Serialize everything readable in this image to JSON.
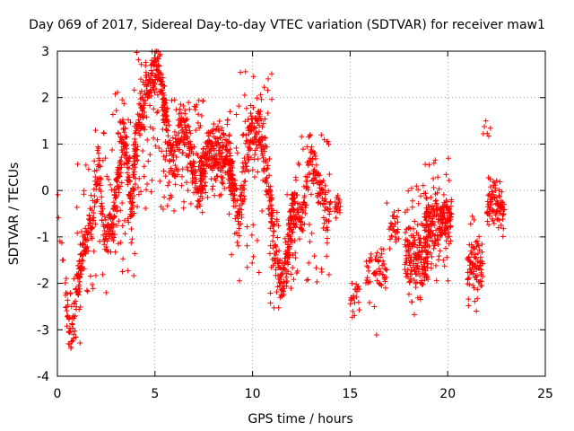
{
  "chart_data": {
    "type": "scatter",
    "title": "Day 069 of 2017, Sidereal Day-to-day VTEC variation (SDTVAR) for receiver maw1",
    "xlabel": "GPS time / hours",
    "ylabel": "SDTVAR / TECUs",
    "xlim": [
      0,
      25
    ],
    "ylim": [
      -4,
      3
    ],
    "xticks": [
      "0",
      "5",
      "10",
      "15",
      "20",
      "25"
    ],
    "yticks": [
      "-4",
      "-3",
      "-2",
      "-1",
      "0",
      "1",
      "2",
      "3"
    ],
    "grid": true,
    "marker": "+",
    "color": "#ff0000",
    "series": [
      {
        "name": "SDTVAR",
        "trend": [
          [
            0.0,
            0.1
          ],
          [
            0.1,
            -0.8
          ],
          [
            0.2,
            -1.2
          ],
          [
            0.5,
            -2.5
          ],
          [
            0.7,
            -3.2
          ],
          [
            0.9,
            -2.7
          ],
          [
            1.0,
            -2.0
          ],
          [
            1.2,
            -1.5
          ],
          [
            1.5,
            -1.0
          ],
          [
            1.8,
            -0.5
          ],
          [
            2.0,
            0.2
          ],
          [
            2.1,
            0.8
          ],
          [
            2.3,
            -0.5
          ],
          [
            2.5,
            -1.0
          ],
          [
            2.8,
            -0.8
          ],
          [
            3.0,
            -0.2
          ],
          [
            3.2,
            0.5
          ],
          [
            3.4,
            1.2
          ],
          [
            3.6,
            0.5
          ],
          [
            3.8,
            -0.5
          ],
          [
            4.0,
            1.0
          ],
          [
            4.3,
            1.8
          ],
          [
            4.6,
            2.2
          ],
          [
            4.9,
            2.5
          ],
          [
            5.1,
            2.7
          ],
          [
            5.3,
            2.3
          ],
          [
            5.6,
            1.5
          ],
          [
            5.8,
            0.8
          ],
          [
            6.0,
            0.5
          ],
          [
            6.3,
            1.5
          ],
          [
            6.6,
            1.2
          ],
          [
            6.9,
            0.6
          ],
          [
            7.2,
            0.0
          ],
          [
            7.5,
            0.5
          ],
          [
            7.8,
            0.9
          ],
          [
            8.1,
            0.8
          ],
          [
            8.4,
            1.0
          ],
          [
            8.7,
            0.7
          ],
          [
            9.0,
            0.2
          ],
          [
            9.3,
            -0.7
          ],
          [
            9.6,
            0.5
          ],
          [
            9.9,
            1.2
          ],
          [
            10.2,
            1.5
          ],
          [
            10.5,
            1.0
          ],
          [
            10.8,
            0.2
          ],
          [
            11.0,
            -0.5
          ],
          [
            11.2,
            -1.5
          ],
          [
            11.5,
            -2.0
          ],
          [
            11.8,
            -1.5
          ],
          [
            12.0,
            -0.5
          ],
          [
            12.2,
            -0.3
          ],
          [
            12.5,
            -0.8
          ],
          [
            12.8,
            0.3
          ],
          [
            13.0,
            0.9
          ],
          [
            13.3,
            0.2
          ],
          [
            13.6,
            -0.3
          ],
          [
            13.9,
            -0.6
          ]
        ],
        "segments": [
          {
            "x": [
              0.0,
              0.35
            ],
            "y": [
              -1.5,
              0.2
            ],
            "n": 6,
            "spread": 0.3
          },
          {
            "x": [
              0.4,
              1.2
            ],
            "y": [
              -3.4,
              -1.8
            ],
            "n": 70,
            "spread": 0.4
          },
          {
            "x": [
              1.0,
              2.8
            ],
            "y": [
              -2.4,
              1.3
            ],
            "n": 200,
            "spread": 0.4
          },
          {
            "x": [
              2.8,
              4.0
            ],
            "y": [
              -2.0,
              2.3
            ],
            "n": 200,
            "spread": 0.4
          },
          {
            "x": [
              3.9,
              5.6
            ],
            "y": [
              -0.5,
              3.0
            ],
            "n": 240,
            "spread": 0.4
          },
          {
            "x": [
              5.4,
              7.5
            ],
            "y": [
              -0.5,
              2.1
            ],
            "n": 260,
            "spread": 0.4
          },
          {
            "x": [
              7.3,
              9.0
            ],
            "y": [
              -0.2,
              1.6
            ],
            "n": 240,
            "spread": 0.4
          },
          {
            "x": [
              8.8,
              11.0
            ],
            "y": [
              -2.0,
              2.7
            ],
            "n": 280,
            "spread": 0.5
          },
          {
            "x": [
              10.9,
              12.2
            ],
            "y": [
              -2.6,
              0.0
            ],
            "n": 160,
            "spread": 0.4
          },
          {
            "x": [
              11.8,
              14.0
            ],
            "y": [
              -2.0,
              1.2
            ],
            "n": 220,
            "spread": 0.4
          },
          {
            "x": [
              14.2,
              14.5
            ],
            "y": [
              -0.6,
              -0.1
            ],
            "n": 18,
            "spread": 0.2
          },
          {
            "x": [
              15.0,
              15.5
            ],
            "y": [
              -3.0,
              -1.5
            ],
            "n": 22,
            "spread": 0.3
          },
          {
            "x": [
              15.8,
              16.1
            ],
            "y": [
              -2.5,
              -1.0
            ],
            "n": 16,
            "spread": 0.3
          },
          {
            "x": [
              16.2,
              16.9
            ],
            "y": [
              -3.2,
              0.0
            ],
            "n": 40,
            "spread": 0.4
          },
          {
            "x": [
              17.0,
              17.5
            ],
            "y": [
              -1.5,
              -0.2
            ],
            "n": 28,
            "spread": 0.3
          },
          {
            "x": [
              17.8,
              19.0
            ],
            "y": [
              -3.0,
              0.2
            ],
            "n": 170,
            "spread": 0.5
          },
          {
            "x": [
              18.8,
              20.2
            ],
            "y": [
              -2.0,
              0.7
            ],
            "n": 210,
            "spread": 0.5
          },
          {
            "x": [
              21.0,
              21.8
            ],
            "y": [
              -2.6,
              -0.5
            ],
            "n": 90,
            "spread": 0.4
          },
          {
            "x": [
              21.8,
              22.2
            ],
            "y": [
              1.1,
              1.5
            ],
            "n": 6,
            "spread": 0.2
          },
          {
            "x": [
              22.0,
              22.9
            ],
            "y": [
              -1.0,
              0.3
            ],
            "n": 90,
            "spread": 0.3
          }
        ]
      }
    ]
  }
}
